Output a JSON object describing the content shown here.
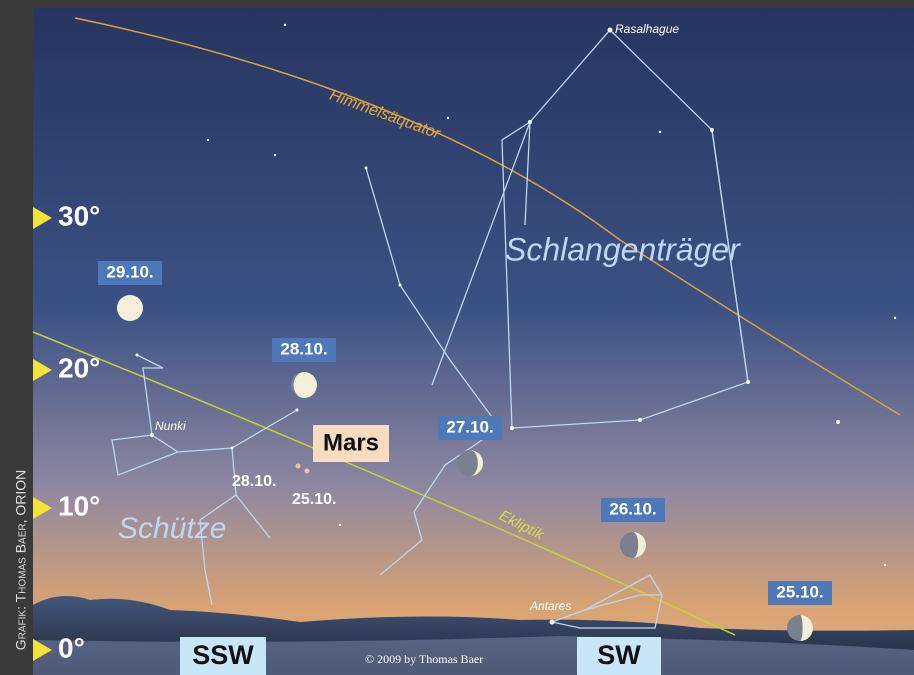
{
  "credit": "Grafik: Thomas Baer, ORION",
  "copyright": "© 2009 by Thomas Baer",
  "altitude_labels": [
    "30°",
    "20°",
    "10°",
    "0°"
  ],
  "directions": [
    "SSW",
    "SW"
  ],
  "lines": {
    "equator": "Himmelsäquator",
    "ecliptic": "Ekliptik"
  },
  "constellations": [
    "Schlangenträger",
    "Schütze"
  ],
  "stars": [
    "Rasalhague",
    "Nunki",
    "Antares"
  ],
  "moon_dates": [
    "29.10.",
    "28.10.",
    "27.10.",
    "26.10.",
    "25.10."
  ],
  "planet": {
    "name": "Mars",
    "dates": [
      "28.10.",
      "25.10."
    ]
  }
}
